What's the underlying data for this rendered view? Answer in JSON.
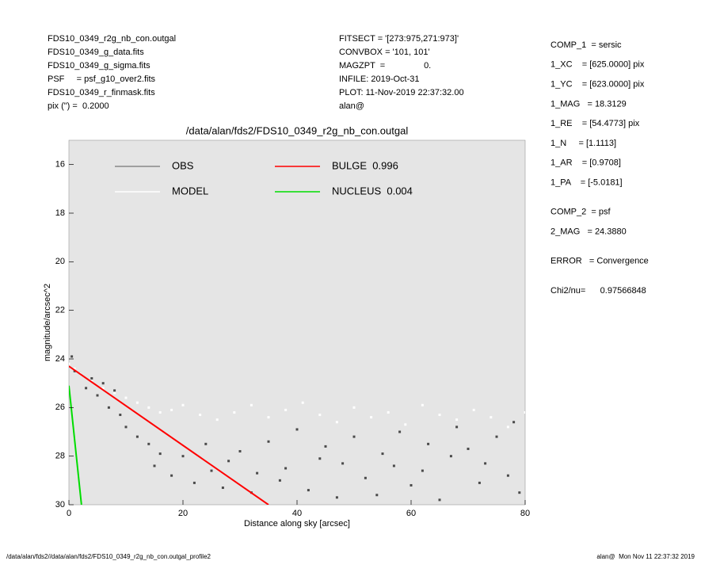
{
  "header": {
    "left": [
      "FDS10_0349_r2g_nb_con.outgal",
      "FDS10_0349_g_data.fits",
      "FDS10_0349_g_sigma.fits",
      "PSF     = psf_g10_over2.fits",
      "FDS10_0349_r_finmask.fits",
      "pix (\") =  0.2000"
    ],
    "middle": [
      "FITSECT = '[273:975,271:973]'",
      "CONVBOX = '101, 101'",
      "MAGZPT  =                0.",
      "INFILE: 2019-Oct-31",
      "PLOT: 11-Nov-2019 22:37:32.00",
      "alan@"
    ],
    "right": [
      [
        "COMP_1  = sersic",
        "1_XC    = [625.0000] pix",
        "1_YC    = [623.0000] pix",
        "1_MAG   = 18.3129",
        "1_RE    = [54.4773] pix",
        "1_N     = [1.1113]",
        "1_AR    = [0.9708]",
        "1_PA    = [-5.0181]"
      ],
      [
        "COMP_2  = psf",
        "2_MAG   = 24.3880"
      ],
      [
        "ERROR   = Convergence"
      ],
      [
        "Chi2/nu=      0.97566848"
      ]
    ]
  },
  "footer": {
    "left": "/data/alan/fds2//data/alan/fds2/FDS10_0349_r2g_nb_con.outgal_profile2",
    "right": "alan@  Mon Nov 11 22:37:32 2019"
  },
  "chart_data": {
    "type": "scatter",
    "title": "/data/alan/fds2/FDS10_0349_r2g_nb_con.outgal",
    "x_label": "Distance along sky [arcsec]",
    "y_label": "magnitude/arcsec^2",
    "xlim": [
      0,
      80
    ],
    "xticks": [
      0,
      20,
      40,
      60,
      80
    ],
    "ylim": [
      30,
      15
    ],
    "yticks": [
      16,
      18,
      20,
      22,
      24,
      26,
      28,
      30
    ],
    "background": "#e5e5e5",
    "series": [
      {
        "name": "OBS",
        "color": "#4a4a4a",
        "mode": "markers",
        "x": [
          0.5,
          1,
          2,
          3,
          4,
          5,
          6,
          7,
          8,
          9,
          10,
          12,
          14,
          15,
          16,
          18,
          20,
          22,
          24,
          25,
          27,
          28,
          30,
          32,
          33,
          35,
          37,
          38,
          40,
          42,
          44,
          45,
          47,
          48,
          50,
          52,
          54,
          55,
          57,
          58,
          60,
          62,
          63,
          65,
          67,
          68,
          70,
          72,
          73,
          75,
          77,
          78,
          79
        ],
        "values": [
          23.9,
          24.5,
          24.6,
          25.2,
          24.8,
          25.5,
          25,
          26,
          25.3,
          26.3,
          26.8,
          27.2,
          27.5,
          28.4,
          27.9,
          28.8,
          28,
          29.1,
          27.5,
          28.6,
          29.3,
          28.2,
          27.8,
          29.5,
          28.7,
          27.4,
          29,
          28.5,
          26.9,
          29.4,
          28.1,
          27.6,
          29.7,
          28.3,
          27.2,
          28.9,
          29.6,
          27.9,
          28.4,
          27,
          29.2,
          28.6,
          27.5,
          29.8,
          28,
          26.8,
          27.7,
          29.1,
          28.3,
          27.2,
          28.8,
          26.6,
          29.5
        ]
      },
      {
        "name": "MODEL",
        "color": "#ffffff",
        "mode": "markers",
        "x": [
          0,
          1,
          2,
          4,
          6,
          8,
          10,
          12,
          14,
          16,
          18,
          20,
          23,
          26,
          29,
          32,
          35,
          38,
          41,
          44,
          47,
          50,
          53,
          56,
          59,
          62,
          65,
          68,
          71,
          74,
          77,
          80
        ],
        "values": [
          24.2,
          24.4,
          24.6,
          24.9,
          25.2,
          25.4,
          25.6,
          25.8,
          26,
          26.2,
          26.1,
          25.9,
          26.3,
          26.5,
          26.2,
          25.9,
          26.4,
          26.1,
          25.8,
          26.3,
          26.6,
          26,
          26.4,
          26.2,
          26.7,
          25.9,
          26.3,
          26.5,
          26.1,
          26.4,
          26.8,
          26.2
        ]
      },
      {
        "name": "BULGE  0.996",
        "color": "#ff0000",
        "mode": "line",
        "x": [
          0,
          35
        ],
        "values": [
          24.3,
          30
        ]
      },
      {
        "name": "NUCLEUS  0.004",
        "color": "#00dd00",
        "mode": "line",
        "x": [
          0,
          2.2
        ],
        "values": [
          25.1,
          30
        ]
      }
    ]
  }
}
